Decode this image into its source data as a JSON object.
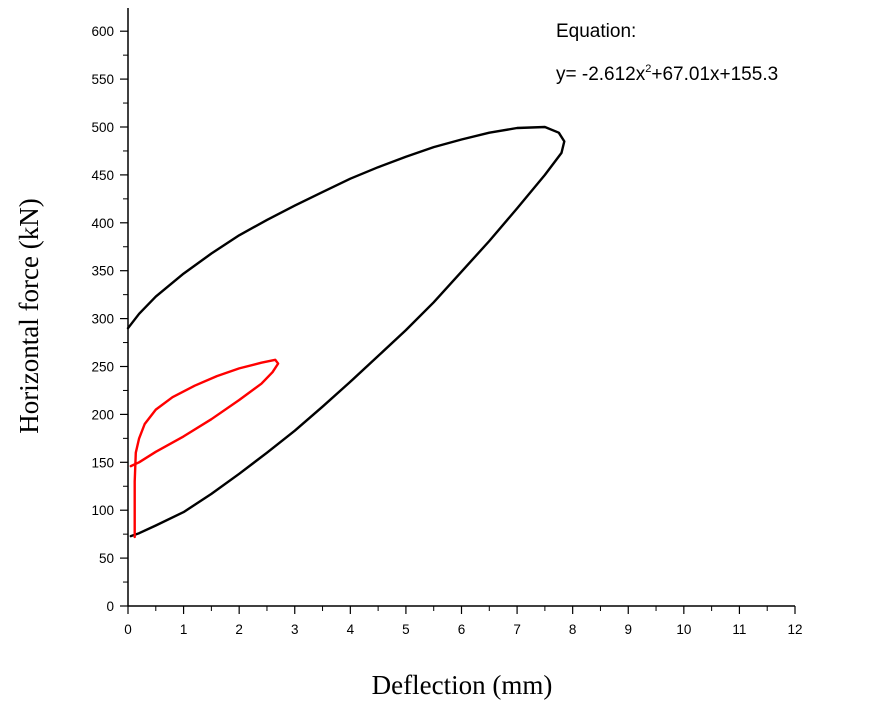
{
  "chart_data": {
    "type": "line",
    "xlabel": "Deflection (mm)",
    "ylabel": "Horizontal force (kN)",
    "xlim": [
      0,
      12
    ],
    "ylim": [
      0,
      620
    ],
    "xticks": [
      0,
      1,
      2,
      3,
      4,
      5,
      6,
      7,
      8,
      9,
      10,
      11,
      12
    ],
    "yticks": [
      0,
      50,
      100,
      150,
      200,
      250,
      300,
      350,
      400,
      450,
      500,
      550,
      600
    ],
    "grid": false,
    "annotation": {
      "title": "Equation:",
      "equation_prefix": "y= -2.612x",
      "equation_exponent": "2",
      "equation_suffix": "+67.01x+155.3"
    },
    "series": [
      {
        "color": "#000000",
        "points": [
          [
            0.0,
            290
          ],
          [
            0.2,
            305
          ],
          [
            0.5,
            323
          ],
          [
            1.0,
            347
          ],
          [
            1.5,
            368
          ],
          [
            2.0,
            387
          ],
          [
            2.5,
            403
          ],
          [
            3.0,
            418
          ],
          [
            3.5,
            432
          ],
          [
            4.0,
            446
          ],
          [
            4.5,
            458
          ],
          [
            5.0,
            469
          ],
          [
            5.5,
            479
          ],
          [
            6.0,
            487
          ],
          [
            6.5,
            494
          ],
          [
            7.0,
            499
          ],
          [
            7.5,
            500
          ],
          [
            7.75,
            494
          ],
          [
            7.85,
            485
          ],
          [
            7.8,
            473
          ],
          [
            7.5,
            450
          ],
          [
            7.0,
            415
          ],
          [
            6.5,
            381
          ],
          [
            6.0,
            349
          ],
          [
            5.5,
            317
          ],
          [
            5.0,
            288
          ],
          [
            4.5,
            261
          ],
          [
            4.0,
            234
          ],
          [
            3.5,
            208
          ],
          [
            3.0,
            183
          ],
          [
            2.5,
            160
          ],
          [
            2.0,
            138
          ],
          [
            1.5,
            117
          ],
          [
            1.0,
            98
          ],
          [
            0.5,
            84
          ],
          [
            0.2,
            76
          ],
          [
            0.05,
            73
          ]
        ]
      },
      {
        "color": "#ff0000",
        "points": [
          [
            0.12,
            72
          ],
          [
            0.12,
            100
          ],
          [
            0.12,
            130
          ],
          [
            0.14,
            160
          ],
          [
            0.2,
            175
          ],
          [
            0.3,
            190
          ],
          [
            0.5,
            205
          ],
          [
            0.8,
            218
          ],
          [
            1.2,
            230
          ],
          [
            1.6,
            240
          ],
          [
            2.0,
            248
          ],
          [
            2.4,
            254
          ],
          [
            2.65,
            257
          ],
          [
            2.7,
            253
          ],
          [
            2.6,
            244
          ],
          [
            2.4,
            232
          ],
          [
            2.0,
            215
          ],
          [
            1.5,
            195
          ],
          [
            1.0,
            177
          ],
          [
            0.5,
            161
          ],
          [
            0.2,
            150
          ],
          [
            0.05,
            146
          ]
        ]
      }
    ]
  }
}
